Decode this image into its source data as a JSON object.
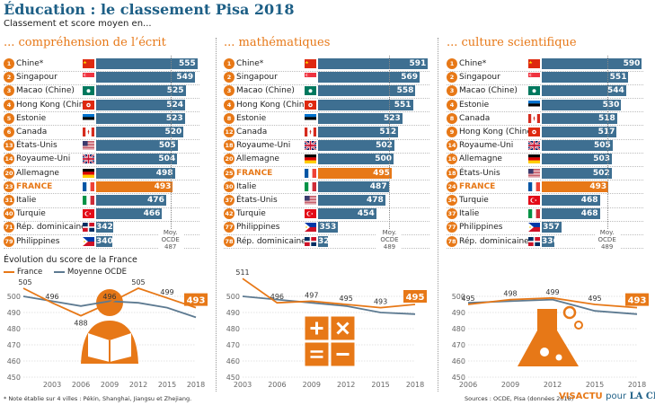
{
  "header": {
    "title": "Éducation : le classement Pisa 2018",
    "subtitle": "Classement et score moyen en..."
  },
  "colors": {
    "blue": "#3e6f91",
    "orange": "#e77817",
    "grey_line": "#5d7a91",
    "title_blue": "#1d5f86"
  },
  "oecd_label": [
    "Moy.",
    "OCDE"
  ],
  "chart_data": [
    {
      "type": "bar",
      "title": "... compréhension de l’écrit",
      "ranks": [
        "1",
        "2",
        "3",
        "4",
        "5",
        "6",
        "13",
        "14",
        "20",
        "23",
        "31",
        "40",
        "71",
        "79"
      ],
      "categories": [
        "Chine*",
        "Singapour",
        "Macao (Chine)",
        "Hong Kong (Chine)",
        "Estonie",
        "Canada",
        "États-Unis",
        "Royaume-Uni",
        "Allemagne",
        "FRANCE",
        "Italie",
        "Turquie",
        "Rép. dominicaine",
        "Philippines"
      ],
      "flags": [
        "cn",
        "sg",
        "mo",
        "hk",
        "ee",
        "ca",
        "us",
        "gb",
        "de",
        "fr",
        "it",
        "tr",
        "do",
        "ph"
      ],
      "values": [
        555,
        549,
        525,
        524,
        523,
        520,
        505,
        504,
        498,
        493,
        476,
        466,
        342,
        340
      ],
      "highlight": "FRANCE",
      "oecd_average": 487
    },
    {
      "type": "bar",
      "title": "... mathématiques",
      "ranks": [
        "1",
        "2",
        "3",
        "4",
        "8",
        "12",
        "18",
        "20",
        "25",
        "30",
        "37",
        "42",
        "77",
        "78"
      ],
      "categories": [
        "Chine*",
        "Singapour",
        "Macao (Chine)",
        "Hong Kong (Chine)",
        "Estonie",
        "Canada",
        "Royaume-Uni",
        "Allemagne",
        "FRANCE",
        "Italie",
        "États-Unis",
        "Turquie",
        "Philippines",
        "Rép. dominicaine"
      ],
      "flags": [
        "cn",
        "sg",
        "mo",
        "hk",
        "ee",
        "ca",
        "gb",
        "de",
        "fr",
        "it",
        "us",
        "tr",
        "ph",
        "do"
      ],
      "values": [
        591,
        569,
        558,
        551,
        523,
        512,
        502,
        500,
        495,
        487,
        478,
        454,
        353,
        325
      ],
      "highlight": "FRANCE",
      "oecd_average": 489
    },
    {
      "type": "bar",
      "title": "... culture scientifique",
      "ranks": [
        "1",
        "2",
        "3",
        "4",
        "8",
        "9",
        "14",
        "16",
        "18",
        "24",
        "34",
        "37",
        "77",
        "78"
      ],
      "categories": [
        "Chine*",
        "Singapour",
        "Macao (Chine)",
        "Estonie",
        "Canada",
        "Hong Kong (Chine)",
        "Royaume-Uni",
        "Allemagne",
        "États-Unis",
        "FRANCE",
        "Turquie",
        "Italie",
        "Philippines",
        "Rép. dominicaine"
      ],
      "flags": [
        "cn",
        "sg",
        "mo",
        "ee",
        "ca",
        "hk",
        "gb",
        "de",
        "us",
        "fr",
        "tr",
        "it",
        "ph",
        "do"
      ],
      "values": [
        590,
        551,
        544,
        530,
        518,
        517,
        505,
        503,
        502,
        493,
        468,
        468,
        357,
        336
      ],
      "highlight": "FRANCE",
      "oecd_average": 489
    },
    {
      "type": "line",
      "title": "Évolution du score de la France",
      "x": [
        2003,
        2006,
        2009,
        2012,
        2015,
        2018
      ],
      "ylim": [
        450,
        510
      ],
      "yticks": [
        450,
        460,
        470,
        480,
        490,
        500
      ],
      "series": [
        {
          "name": "France",
          "values": [
            505,
            496,
            488,
            496,
            505,
            499,
            493
          ],
          "x": [
            2000,
            2003,
            2006,
            2009,
            2012,
            2015,
            2018
          ]
        },
        {
          "name": "Moyenne OCDE",
          "values": [
            500,
            497,
            494,
            497,
            496,
            493,
            487
          ],
          "x": [
            2000,
            2003,
            2006,
            2009,
            2012,
            2015,
            2018
          ]
        }
      ],
      "labels": [
        505,
        496,
        488,
        496,
        505,
        499
      ],
      "final_label": "493",
      "icon": "reader-icon"
    },
    {
      "type": "line",
      "title": "",
      "x": [
        2003,
        2006,
        2009,
        2012,
        2015,
        2018
      ],
      "ylim": [
        450,
        510
      ],
      "yticks": [
        450,
        460,
        470,
        480,
        490,
        500
      ],
      "series": [
        {
          "name": "France",
          "values": [
            511,
            496,
            497,
            495,
            493,
            495
          ],
          "x": [
            2003,
            2006,
            2009,
            2012,
            2015,
            2018
          ]
        },
        {
          "name": "Moyenne OCDE",
          "values": [
            500,
            498,
            496,
            494,
            490,
            489
          ],
          "x": [
            2003,
            2006,
            2009,
            2012,
            2015,
            2018
          ]
        }
      ],
      "labels": [
        511,
        496,
        497,
        495,
        493
      ],
      "final_label": "495",
      "icon": "math-operators-icon"
    },
    {
      "type": "line",
      "title": "",
      "x": [
        2006,
        2009,
        2012,
        2015,
        2018
      ],
      "ylim": [
        450,
        510
      ],
      "yticks": [
        450,
        460,
        470,
        480,
        490,
        500
      ],
      "series": [
        {
          "name": "France",
          "values": [
            495,
            498,
            499,
            495,
            493
          ],
          "x": [
            2006,
            2009,
            2012,
            2015,
            2018
          ]
        },
        {
          "name": "Moyenne OCDE",
          "values": [
            496,
            497,
            498,
            491,
            489
          ],
          "x": [
            2006,
            2009,
            2012,
            2015,
            2018
          ]
        }
      ],
      "labels": [
        495,
        498,
        499,
        495
      ],
      "final_label": "493",
      "icon": "flask-icon"
    }
  ],
  "legend": {
    "france": "France",
    "oecd": "Moyenne OCDE"
  },
  "footnote": "* Note établie sur 4 villes : Pékin, Shanghai, Jiangsu et Zhejiang.",
  "sources": "Sources : OCDE, Pisa (données 2018)",
  "brand": {
    "visactu": "VISACTU",
    "pour": "pour",
    "lacroix": "LA CROIX"
  }
}
